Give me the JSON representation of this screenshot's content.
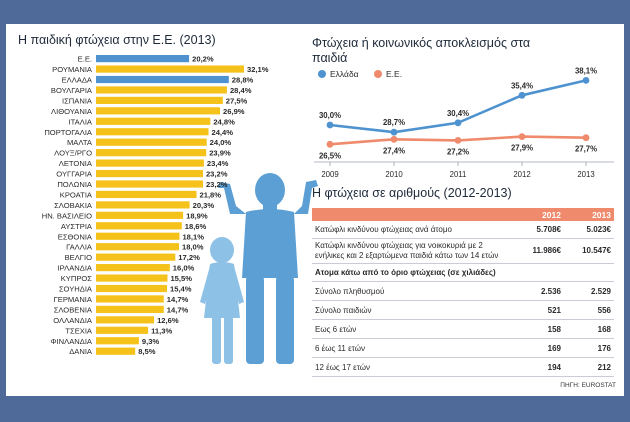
{
  "left_title": "Η παιδική φτώχεια στην Ε.Ε. (2013)",
  "right_title": "Φτώχεια ή κοινωνικός αποκλεισμός στα παιδιά",
  "table_title": "Η φτώχεια σε αριθμούς (2012-2013)",
  "source": "ΠΗΓΗ: EUROSTAT",
  "colors": {
    "eu_bar": "#4e93cf",
    "country_bar": "#f5c21b",
    "greece_line": "#4e93cf",
    "eu_line": "#ef8a6c",
    "header": "#ef8a6c",
    "frame": "#4f6a98"
  },
  "chart_data": [
    {
      "type": "bar",
      "orientation": "horizontal",
      "title": "Η παιδική φτώχεια στην Ε.Ε. (2013)",
      "unit": "%",
      "categories": [
        "Ε.Ε.",
        "ΡΟΥΜΑΝΙΑ",
        "ΕΛΛΑΔΑ",
        "ΒΟΥΛΓΑΡΙΑ",
        "ΙΣΠΑΝΙΑ",
        "ΛΙΘΟΥΑΝΙΑ",
        "ΙΤΑΛΙΑ",
        "ΠΟΡΤΟΓΑΛΙΑ",
        "ΜΑΛΤΑ",
        "ΛΟΥΞ/ΡΓΟ",
        "ΛΕΤΟΝΙΑ",
        "ΟΥΓΓΑΡΙΑ",
        "ΠΟΛΩΝΙΑ",
        "ΚΡΟΑΤΙΑ",
        "ΣΛΟΒΑΚΙΑ",
        "ΗΝ. ΒΑΣΙΛΕΙΟ",
        "ΑΥΣΤΡΙΑ",
        "ΕΣΘΟΝΙΑ",
        "ΓΑΛΛΙΑ",
        "ΒΕΛΓΙΟ",
        "ΙΡΛΑΝΔΙΑ",
        "ΚΥΠΡΟΣ",
        "ΣΟΥΗΔΙΑ",
        "ΓΕΡΜΑΝΙΑ",
        "ΣΛΟΒΕΝΙΑ",
        "ΟΛΛΑΝΔΙΑ",
        "ΤΣΕΧΙΑ",
        "ΦΙΝΛΑΝΔΙΑ",
        "ΔΑΝΙΑ"
      ],
      "values": [
        20.2,
        32.1,
        28.8,
        28.4,
        27.5,
        26.9,
        24.8,
        24.4,
        24.0,
        23.9,
        23.4,
        23.2,
        23.2,
        21.8,
        20.3,
        18.9,
        18.6,
        18.1,
        18.0,
        17.2,
        16.0,
        15.5,
        15.4,
        14.7,
        14.7,
        12.6,
        11.3,
        9.3,
        8.5
      ],
      "labels": [
        "20,2%",
        "32,1%",
        "28,8%",
        "28,4%",
        "27,5%",
        "26,9%",
        "24,8%",
        "24,4%",
        "24,0%",
        "23,9%",
        "23,4%",
        "23,2%",
        "23,2%",
        "21,8%",
        "20,3%",
        "18,9%",
        "18,6%",
        "18,1%",
        "18,0%",
        "17,2%",
        "16,0%",
        "15,5%",
        "15,4%",
        "14,7%",
        "14,7%",
        "12,6%",
        "11,3%",
        "9,3%",
        "8,5%"
      ],
      "highlight": [
        "Ε.Ε.",
        "ΕΛΛΑΔΑ"
      ]
    },
    {
      "type": "line",
      "title": "Φτώχεια ή κοινωνικός αποκλεισμός στα παιδιά",
      "x": [
        "2009",
        "2010",
        "2011",
        "2012",
        "2013"
      ],
      "ylim": [
        24,
        40
      ],
      "legend_position": "top-left",
      "series": [
        {
          "name": "Ελλάδα",
          "values": [
            30.0,
            28.7,
            30.4,
            35.4,
            38.1
          ],
          "labels": [
            "30,0%",
            "28,7%",
            "30,4%",
            "35,4%",
            "38,1%"
          ]
        },
        {
          "name": "Ε.Ε.",
          "values": [
            26.5,
            27.4,
            27.2,
            27.9,
            27.7
          ],
          "labels": [
            "26,5%",
            "27,4%",
            "27,2%",
            "27,9%",
            "27,7%"
          ]
        }
      ]
    },
    {
      "type": "table",
      "title": "Η φτώχεια σε αριθμούς (2012-2013)",
      "columns": [
        "",
        "2012",
        "2013"
      ],
      "rows": [
        {
          "label": "Κατώφλι κινδύνου φτώχειας ανά άτομο",
          "v2012": "5.708€",
          "v2013": "5.023€"
        },
        {
          "label": "Κατώφλι κινδύνου φτώχειας για νοικοκυριά με 2 ενήλικες και 2 εξαρτώμενα παιδιά κάτω των 14 ετών",
          "v2012": "11.986€",
          "v2013": "10.547€"
        }
      ],
      "subheading": "Ατομα κάτω από το όριο φτώχειας (σε χιλιάδες)",
      "rows2": [
        {
          "label": "Σύνολο πληθυσμού",
          "v2012": "2.536",
          "v2013": "2.529"
        },
        {
          "label": "Σύνολο παιδιών",
          "v2012": "521",
          "v2013": "556"
        },
        {
          "label": "Εως 6 ετών",
          "v2012": "158",
          "v2013": "168"
        },
        {
          "label": "6 έως 11 ετών",
          "v2012": "169",
          "v2013": "176"
        },
        {
          "label": "12 έως 17 ετών",
          "v2012": "194",
          "v2013": "212"
        }
      ]
    }
  ]
}
